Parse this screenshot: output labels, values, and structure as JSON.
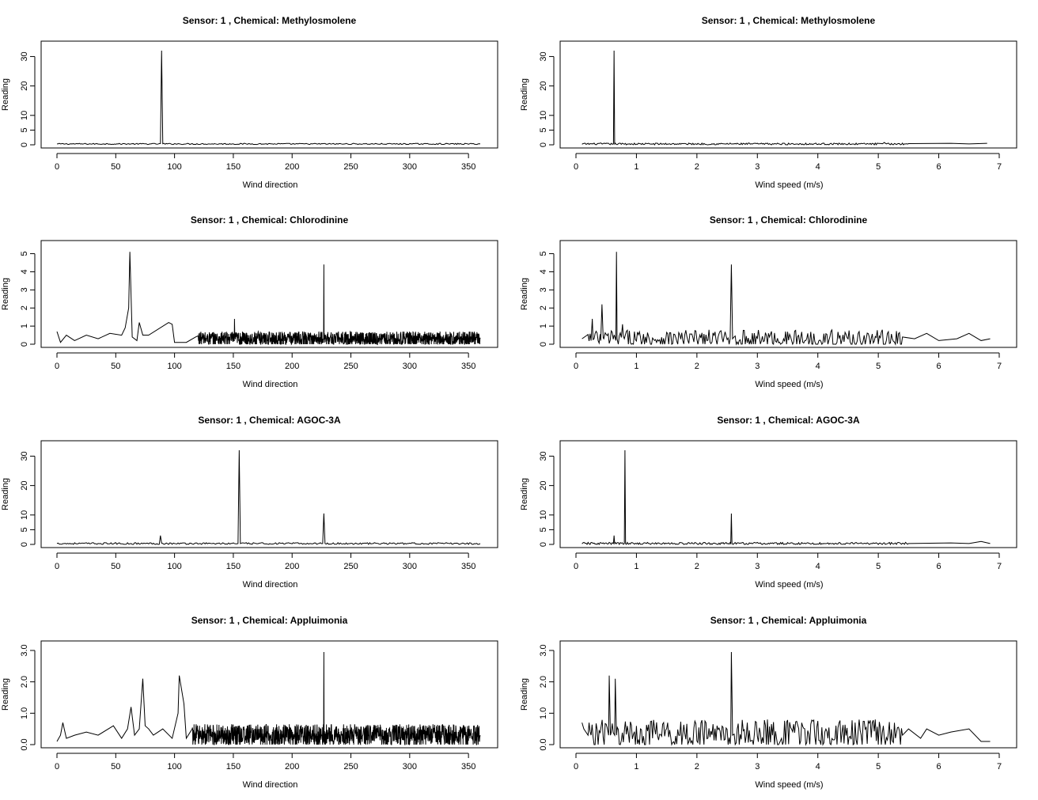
{
  "figure": {
    "background": "#ffffff",
    "line_color": "#000000"
  },
  "chart_data": [
    {
      "type": "line",
      "title": "Sensor:  1 , Chemical:  Methylosmolene",
      "xlabel": "Wind direction",
      "ylabel": "Reading",
      "xlim": [
        0,
        360
      ],
      "ylim": [
        0,
        32
      ],
      "xticks": [
        0,
        50,
        100,
        150,
        200,
        250,
        300,
        350
      ],
      "yticks": [
        0,
        5,
        10,
        20,
        30
      ],
      "series": [
        {
          "noise": {
            "x_start": 0,
            "x_end": 360,
            "level": 0.3,
            "amplitude": 0.2,
            "density": 1
          },
          "points": [
            [
              0,
              0.3
            ],
            [
              40,
              0.3
            ],
            [
              80,
              0.3
            ],
            [
              89,
              32
            ],
            [
              91,
              0.5
            ],
            [
              100,
              0.4
            ],
            [
              180,
              0.4
            ],
            [
              300,
              0.4
            ],
            [
              360,
              0.3
            ]
          ]
        }
      ]
    },
    {
      "type": "line",
      "title": "Sensor:  1 , Chemical:  Methylosmolene",
      "xlabel": "Wind speed (m/s)",
      "ylabel": "Reading",
      "xlim": [
        0,
        7
      ],
      "ylim": [
        0,
        32
      ],
      "xticks": [
        0,
        1,
        2,
        3,
        4,
        5,
        6,
        7
      ],
      "yticks": [
        0,
        5,
        10,
        20,
        30
      ],
      "series": [
        {
          "noise": {
            "x_start": 0.1,
            "x_end": 5.5,
            "level": 0.3,
            "amplitude": 0.3,
            "density": 60
          },
          "points": [
            [
              0.1,
              0.2
            ],
            [
              0.62,
              0.3
            ],
            [
              0.63,
              32
            ],
            [
              0.64,
              0.3
            ],
            [
              2.55,
              0.6
            ],
            [
              5.1,
              0.8
            ],
            [
              5.5,
              0.4
            ],
            [
              6.2,
              0.5
            ],
            [
              6.5,
              0.3
            ],
            [
              6.8,
              0.5
            ]
          ]
        }
      ]
    },
    {
      "type": "line",
      "title": "Sensor:  1 , Chemical:  Chlorodinine",
      "xlabel": "Wind direction",
      "ylabel": "Reading",
      "xlim": [
        0,
        360
      ],
      "ylim": [
        0,
        5.2
      ],
      "xticks": [
        0,
        50,
        100,
        150,
        200,
        250,
        300,
        350
      ],
      "yticks": [
        0,
        1,
        2,
        3,
        4,
        5
      ],
      "series": [
        {
          "noise": {
            "x_start": 120,
            "x_end": 360,
            "level": 0.3,
            "amplitude": 0.4,
            "density": 5
          },
          "points": [
            [
              0,
              0.7
            ],
            [
              3,
              0.1
            ],
            [
              8,
              0.5
            ],
            [
              15,
              0.2
            ],
            [
              25,
              0.5
            ],
            [
              35,
              0.3
            ],
            [
              45,
              0.6
            ],
            [
              55,
              0.5
            ],
            [
              58,
              0.9
            ],
            [
              61,
              2.0
            ],
            [
              62,
              5.1
            ],
            [
              64,
              0.4
            ],
            [
              68,
              0.2
            ],
            [
              70,
              1.2
            ],
            [
              73,
              0.5
            ],
            [
              78,
              0.5
            ],
            [
              95,
              1.2
            ],
            [
              98,
              1.1
            ],
            [
              100,
              0.1
            ],
            [
              110,
              0.1
            ],
            [
              118,
              0.4
            ],
            [
              150,
              0.4
            ],
            [
              151,
              1.4
            ],
            [
              152,
              0.4
            ],
            [
              226,
              0.3
            ],
            [
              227,
              4.4
            ],
            [
              228,
              0.3
            ],
            [
              360,
              0.3
            ]
          ]
        }
      ]
    },
    {
      "type": "line",
      "title": "Sensor:  1 , Chemical:  Chlorodinine",
      "xlabel": "Wind speed (m/s)",
      "ylabel": "Reading",
      "xlim": [
        0,
        7
      ],
      "ylim": [
        0,
        5.2
      ],
      "xticks": [
        0,
        1,
        2,
        3,
        4,
        5,
        6,
        7
      ],
      "yticks": [
        0,
        1,
        2,
        3,
        4,
        5
      ],
      "series": [
        {
          "noise": {
            "x_start": 0.2,
            "x_end": 5.4,
            "level": 0.3,
            "amplitude": 0.5,
            "density": 60
          },
          "points": [
            [
              0.1,
              0.3
            ],
            [
              0.25,
              0.2
            ],
            [
              0.27,
              1.4
            ],
            [
              0.3,
              0.3
            ],
            [
              0.41,
              0.2
            ],
            [
              0.43,
              2.2
            ],
            [
              0.46,
              0.3
            ],
            [
              0.66,
              0.2
            ],
            [
              0.67,
              5.1
            ],
            [
              0.68,
              0.3
            ],
            [
              0.77,
              1.1
            ],
            [
              0.8,
              0.3
            ],
            [
              2.55,
              0.3
            ],
            [
              2.57,
              4.4
            ],
            [
              2.59,
              0.3
            ],
            [
              5.4,
              0.4
            ],
            [
              5.6,
              0.3
            ],
            [
              5.8,
              0.6
            ],
            [
              6.0,
              0.2
            ],
            [
              6.3,
              0.3
            ],
            [
              6.5,
              0.6
            ],
            [
              6.7,
              0.2
            ],
            [
              6.85,
              0.3
            ]
          ]
        }
      ]
    },
    {
      "type": "line",
      "title": "Sensor:  1 , Chemical:  AGOC-3A",
      "xlabel": "Wind direction",
      "ylabel": "Reading",
      "xlim": [
        0,
        360
      ],
      "ylim": [
        0,
        32
      ],
      "xticks": [
        0,
        50,
        100,
        150,
        200,
        250,
        300,
        350
      ],
      "yticks": [
        0,
        5,
        10,
        20,
        30
      ],
      "series": [
        {
          "noise": {
            "x_start": 0,
            "x_end": 360,
            "level": 0.3,
            "amplitude": 0.3,
            "density": 1
          },
          "points": [
            [
              0,
              0.3
            ],
            [
              80,
              0.5
            ],
            [
              88,
              3.0
            ],
            [
              90,
              0.3
            ],
            [
              154,
              0.3
            ],
            [
              155,
              32
            ],
            [
              156,
              0.3
            ],
            [
              226,
              0.3
            ],
            [
              227,
              10.5
            ],
            [
              228,
              0.3
            ],
            [
              360,
              0.3
            ]
          ]
        }
      ]
    },
    {
      "type": "line",
      "title": "Sensor:  1 , Chemical:  AGOC-3A",
      "xlabel": "Wind speed (m/s)",
      "ylabel": "Reading",
      "xlim": [
        0,
        7
      ],
      "ylim": [
        0,
        32
      ],
      "xticks": [
        0,
        1,
        2,
        3,
        4,
        5,
        6,
        7
      ],
      "yticks": [
        0,
        5,
        10,
        20,
        30
      ],
      "series": [
        {
          "noise": {
            "x_start": 0.1,
            "x_end": 5.5,
            "level": 0.3,
            "amplitude": 0.4,
            "density": 60
          },
          "points": [
            [
              0.1,
              0.2
            ],
            [
              0.62,
              0.3
            ],
            [
              0.63,
              3.0
            ],
            [
              0.64,
              0.3
            ],
            [
              0.8,
              0.3
            ],
            [
              0.81,
              32
            ],
            [
              0.82,
              0.3
            ],
            [
              2.56,
              0.3
            ],
            [
              2.57,
              10.5
            ],
            [
              2.58,
              0.3
            ],
            [
              5.5,
              0.3
            ],
            [
              6.2,
              0.5
            ],
            [
              6.5,
              0.3
            ],
            [
              6.7,
              1.0
            ],
            [
              6.85,
              0.3
            ]
          ]
        }
      ]
    },
    {
      "type": "line",
      "title": "Sensor:  1 , Chemical:  Appluimonia",
      "xlabel": "Wind direction",
      "ylabel": "Reading",
      "xlim": [
        0,
        360
      ],
      "ylim": [
        0,
        3.0
      ],
      "xticks": [
        0,
        50,
        100,
        150,
        200,
        250,
        300,
        350
      ],
      "yticks": [
        0,
        1.0,
        2.0,
        3.0
      ],
      "ytick_labels": [
        "0.0",
        "1.0",
        "2.0",
        "3.0"
      ],
      "series": [
        {
          "noise": {
            "x_start": 115,
            "x_end": 360,
            "level": 0.3,
            "amplitude": 0.35,
            "density": 5
          },
          "points": [
            [
              0,
              0.1
            ],
            [
              3,
              0.3
            ],
            [
              5,
              0.7
            ],
            [
              8,
              0.2
            ],
            [
              15,
              0.3
            ],
            [
              25,
              0.4
            ],
            [
              35,
              0.3
            ],
            [
              48,
              0.6
            ],
            [
              55,
              0.2
            ],
            [
              60,
              0.5
            ],
            [
              63,
              1.2
            ],
            [
              66,
              0.3
            ],
            [
              70,
              0.5
            ],
            [
              73,
              2.1
            ],
            [
              75,
              0.6
            ],
            [
              78,
              0.5
            ],
            [
              82,
              0.3
            ],
            [
              90,
              0.5
            ],
            [
              98,
              0.2
            ],
            [
              103,
              1.0
            ],
            [
              104,
              2.2
            ],
            [
              108,
              1.3
            ],
            [
              110,
              0.2
            ],
            [
              115,
              0.5
            ],
            [
              226,
              0.3
            ],
            [
              227,
              2.95
            ],
            [
              228,
              0.3
            ],
            [
              360,
              0.3
            ]
          ]
        }
      ]
    },
    {
      "type": "line",
      "title": "Sensor:  1 , Chemical:  Appluimonia",
      "xlabel": "Wind speed (m/s)",
      "ylabel": "Reading",
      "xlim": [
        0,
        7
      ],
      "ylim": [
        0,
        3.0
      ],
      "xticks": [
        0,
        1,
        2,
        3,
        4,
        5,
        6,
        7
      ],
      "yticks": [
        0,
        1.0,
        2.0,
        3.0
      ],
      "ytick_labels": [
        "0.0",
        "1.0",
        "2.0",
        "3.0"
      ],
      "series": [
        {
          "noise": {
            "x_start": 0.2,
            "x_end": 5.4,
            "level": 0.35,
            "amplitude": 0.45,
            "density": 60
          },
          "points": [
            [
              0.1,
              0.7
            ],
            [
              0.13,
              0.5
            ],
            [
              0.2,
              0.3
            ],
            [
              0.54,
              0.3
            ],
            [
              0.55,
              2.2
            ],
            [
              0.57,
              0.3
            ],
            [
              0.64,
              0.3
            ],
            [
              0.65,
              2.1
            ],
            [
              0.67,
              0.3
            ],
            [
              2.56,
              0.3
            ],
            [
              2.57,
              2.95
            ],
            [
              2.59,
              0.3
            ],
            [
              4.95,
              0.8
            ],
            [
              5.4,
              0.3
            ],
            [
              5.5,
              0.5
            ],
            [
              5.7,
              0.2
            ],
            [
              5.8,
              0.5
            ],
            [
              6.0,
              0.3
            ],
            [
              6.2,
              0.4
            ],
            [
              6.5,
              0.5
            ],
            [
              6.7,
              0.1
            ],
            [
              6.85,
              0.1
            ]
          ]
        }
      ]
    }
  ]
}
